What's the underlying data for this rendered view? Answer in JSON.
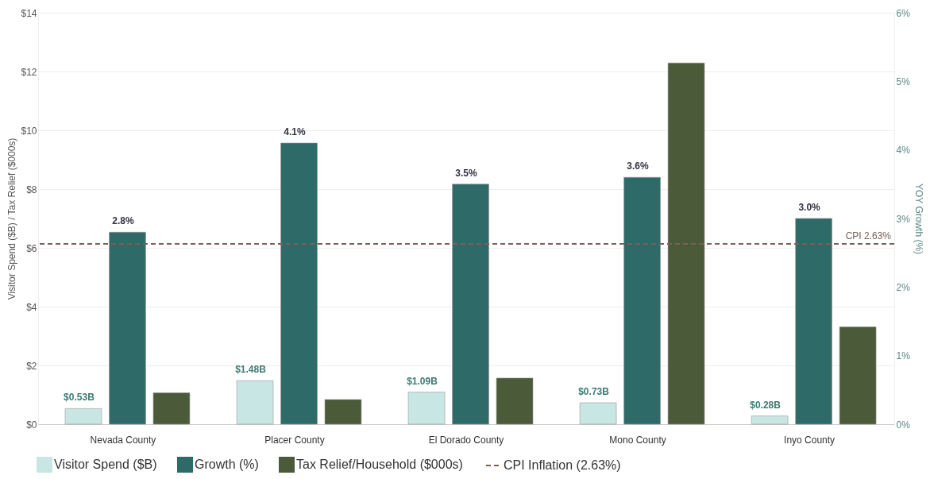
{
  "chart_data": {
    "type": "bar",
    "categories": [
      "Nevada County",
      "Placer County",
      "El Dorado County",
      "Mono County",
      "Inyo County"
    ],
    "ylabel": "Visitor Spend ($B) / Tax Relief ($000s)",
    "y2label": "YOY Growth (%)",
    "series": [
      {
        "name": "Visitor Spend ($B)",
        "color": "#c8e6e3",
        "values": [
          0.53,
          1.48,
          1.09,
          0.73,
          0.28
        ],
        "value_labels": [
          "$0.53B",
          "$1.48B",
          "$1.09B",
          "$0.73B",
          "$0.28B"
        ]
      },
      {
        "name": "Growth (%)",
        "color": "#2e6b68",
        "axis": "y2",
        "values": [
          2.8,
          4.1,
          3.5,
          3.6,
          3.0
        ],
        "value_labels": [
          "2.8%",
          "4.1%",
          "3.5%",
          "3.6%",
          "3.0%"
        ]
      },
      {
        "name": "Tax Relief/Household ($000s)",
        "color": "#4b5a38",
        "values": [
          1.07,
          0.84,
          1.57,
          12.29,
          3.31
        ]
      }
    ],
    "ylim": [
      0,
      14
    ],
    "yticks": [
      {
        "value": 0,
        "label": "$0"
      },
      {
        "value": 2,
        "label": "$2"
      },
      {
        "value": 4,
        "label": "$4"
      },
      {
        "value": 6,
        "label": "$6"
      },
      {
        "value": 8,
        "label": "$8"
      },
      {
        "value": 10,
        "label": "$10"
      },
      {
        "value": 12,
        "label": "$12"
      },
      {
        "value": 14,
        "label": "$14"
      }
    ],
    "y2lim": [
      0,
      6
    ],
    "y2ticks": [
      {
        "value": 0,
        "label": "0%"
      },
      {
        "value": 1,
        "label": "1%"
      },
      {
        "value": 2,
        "label": "2%"
      },
      {
        "value": 3,
        "label": "3%"
      },
      {
        "value": 4,
        "label": "4%"
      },
      {
        "value": 5,
        "label": "5%"
      },
      {
        "value": 6,
        "label": "6%"
      }
    ],
    "ref_lines": [
      {
        "axis": "y2",
        "value": 2.63,
        "label": "CPI 2.63%",
        "color": "#7a6055",
        "line_style": "dashed"
      }
    ],
    "annotations": [
      "CPI Inflation (2.63%)"
    ],
    "grid": "y",
    "legend": "bottom"
  }
}
